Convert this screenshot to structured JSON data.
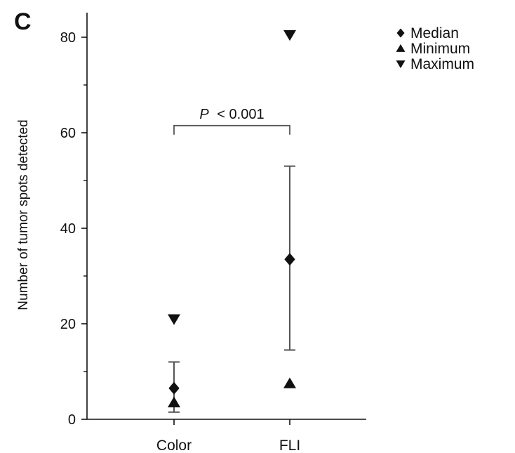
{
  "panel_label": "C",
  "chart_data": {
    "type": "scatter",
    "ylabel": "Number of tumor spots detected",
    "xlabel": "",
    "ylim": [
      0,
      85
    ],
    "yticks": [
      0,
      20,
      40,
      60,
      80
    ],
    "categories": [
      "Color",
      "FLI"
    ],
    "series": [
      {
        "name": "Median",
        "marker": "diamond",
        "values": [
          6.5,
          33.5
        ]
      },
      {
        "name": "Minimum",
        "marker": "triangle-up",
        "values": [
          3.5,
          7.5
        ]
      },
      {
        "name": "Maximum",
        "marker": "triangle-down",
        "values": [
          21,
          80.5
        ]
      }
    ],
    "error_bars": [
      {
        "category": "Color",
        "low": 1.5,
        "high": 12
      },
      {
        "category": "FLI",
        "low": 14.5,
        "high": 53
      }
    ],
    "annotation": {
      "p_symbol": "P",
      "p_text": "< 0.001",
      "y": 61.5
    },
    "legend": {
      "position": "top-right",
      "entries": [
        "Median",
        "Minimum",
        "Maximum"
      ]
    }
  },
  "colors": {
    "ink": "#111111",
    "errorbar": "#555555"
  }
}
